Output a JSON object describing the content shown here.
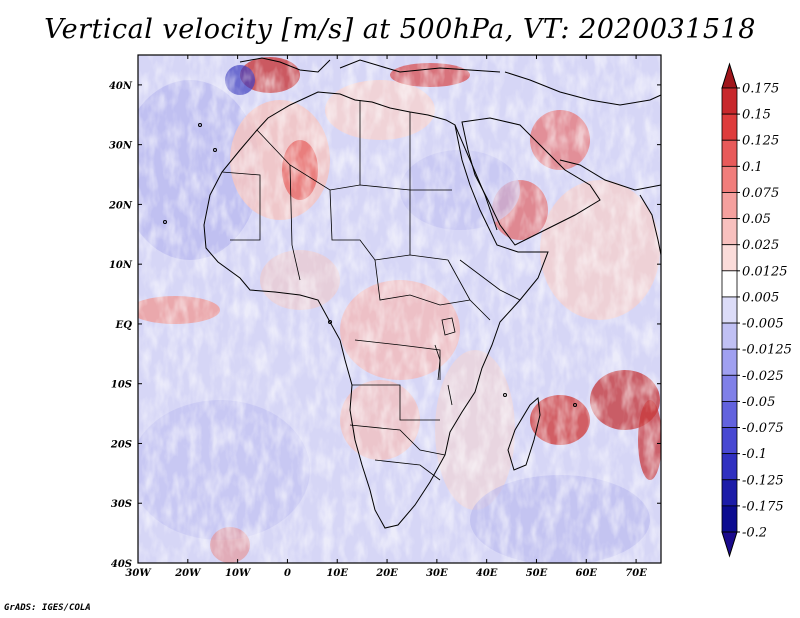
{
  "title": "Vertical velocity [m/s] at 500hPa, VT: 2020031518",
  "map": {
    "projection": "latlon",
    "lon_range": [
      -30,
      75
    ],
    "lat_range": [
      -40,
      45
    ],
    "lat_ticks": [
      {
        "value": 40,
        "label": "40N"
      },
      {
        "value": 30,
        "label": "30N"
      },
      {
        "value": 20,
        "label": "20N"
      },
      {
        "value": 10,
        "label": "10N"
      },
      {
        "value": 0,
        "label": "EQ"
      },
      {
        "value": -10,
        "label": "10S"
      },
      {
        "value": -20,
        "label": "20S"
      },
      {
        "value": -30,
        "label": "30S"
      },
      {
        "value": -40,
        "label": "40S"
      }
    ],
    "lon_ticks": [
      {
        "value": -30,
        "label": "30W"
      },
      {
        "value": -20,
        "label": "20W"
      },
      {
        "value": -10,
        "label": "10W"
      },
      {
        "value": 0,
        "label": "0"
      },
      {
        "value": 10,
        "label": "10E"
      },
      {
        "value": 20,
        "label": "20E"
      },
      {
        "value": 30,
        "label": "30E"
      },
      {
        "value": 40,
        "label": "40E"
      },
      {
        "value": 50,
        "label": "50E"
      },
      {
        "value": 60,
        "label": "60E"
      },
      {
        "value": 70,
        "label": "70E"
      }
    ]
  },
  "colorbar": {
    "levels": [
      "0.175",
      "0.15",
      "0.125",
      "0.1",
      "0.075",
      "0.05",
      "0.025",
      "0.0125",
      "0.005",
      "-0.005",
      "-0.0125",
      "-0.025",
      "-0.05",
      "-0.075",
      "-0.1",
      "-0.125",
      "-0.175",
      "-0.2"
    ],
    "colors": [
      "#a0161b",
      "#c8282c",
      "#de3c3c",
      "#e85a5a",
      "#f07d7b",
      "#f5a09e",
      "#f8c0be",
      "#fbdcda",
      "#ffffff",
      "#dcdcf8",
      "#c0c0f4",
      "#a0a0f0",
      "#8080e8",
      "#6262de",
      "#4848d2",
      "#3030c0",
      "#1c1ca8",
      "#0c0c90",
      "#1a0a8c"
    ]
  },
  "credit": "GrADS: IGES/COLA"
}
